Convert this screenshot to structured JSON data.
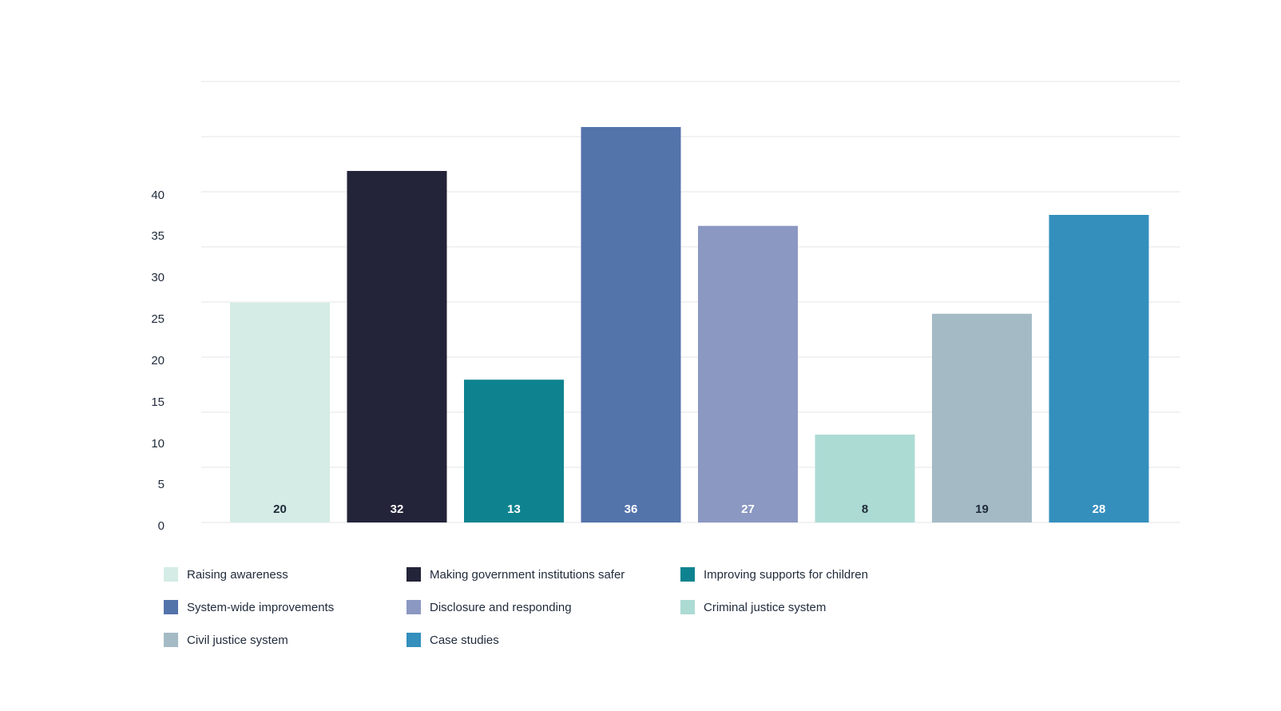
{
  "chart_data": {
    "type": "bar",
    "title": "",
    "xlabel": "",
    "ylabel": "",
    "grid": true,
    "legend_position": "bottom",
    "ylim": [
      0,
      40
    ],
    "y_ticks": [
      "0",
      "5",
      "10",
      "15",
      "20",
      "25",
      "30",
      "35",
      "40"
    ],
    "categories": [
      "Raising awareness",
      "Making government institutions safer",
      "Improving supports for children",
      "System-wide improvements",
      "Disclosure and responding",
      "Criminal justice system",
      "Civil justice system",
      "Case studies"
    ],
    "values": [
      20,
      32,
      13,
      36,
      27,
      8,
      19,
      28
    ],
    "value_labels": [
      "20",
      "32",
      "13",
      "36",
      "27",
      "8",
      "19",
      "28"
    ],
    "colors": [
      "#d4ece5",
      "#232339",
      "#0e838f",
      "#5373ab",
      "#8b98c2",
      "#acdbd4",
      "#a4bbc5",
      "#348fbd"
    ],
    "label_colors": [
      "#1f2a3a",
      "#ffffff",
      "#ffffff",
      "#ffffff",
      "#ffffff",
      "#1f2a3a",
      "#1f2a3a",
      "#ffffff"
    ]
  }
}
